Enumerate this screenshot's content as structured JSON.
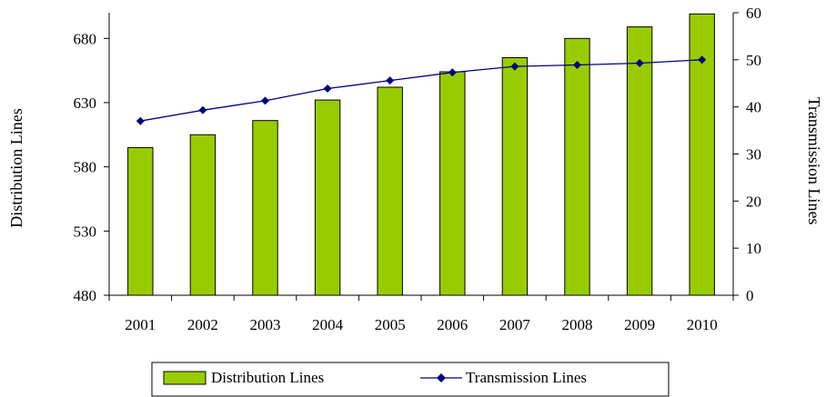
{
  "chart_data": {
    "type": "bar+line",
    "title": "",
    "categories": [
      "2001",
      "2002",
      "2003",
      "2004",
      "2005",
      "2006",
      "2007",
      "2008",
      "2009",
      "2010"
    ],
    "series": [
      {
        "name": "Distribution Lines",
        "type": "bar",
        "axis": "left",
        "color": "#99cc00",
        "values": [
          595,
          605,
          616,
          632,
          642,
          654,
          665,
          680,
          689,
          699
        ]
      },
      {
        "name": "Transmission Lines",
        "type": "line",
        "axis": "right",
        "color": "#000080",
        "marker": "diamond",
        "values": [
          37.0,
          39.3,
          41.3,
          43.9,
          45.6,
          47.3,
          48.6,
          48.9,
          49.3,
          50.0
        ]
      }
    ],
    "ylabel_left": "Distribution Lines",
    "ylabel_right": "Transmission Lines",
    "ylim_left": [
      480,
      700
    ],
    "yticks_left": [
      480,
      530,
      580,
      630,
      680
    ],
    "ylim_right": [
      0,
      60
    ],
    "yticks_right": [
      0,
      10,
      20,
      30,
      40,
      50,
      60
    ],
    "grid": false,
    "legend_position": "bottom"
  }
}
